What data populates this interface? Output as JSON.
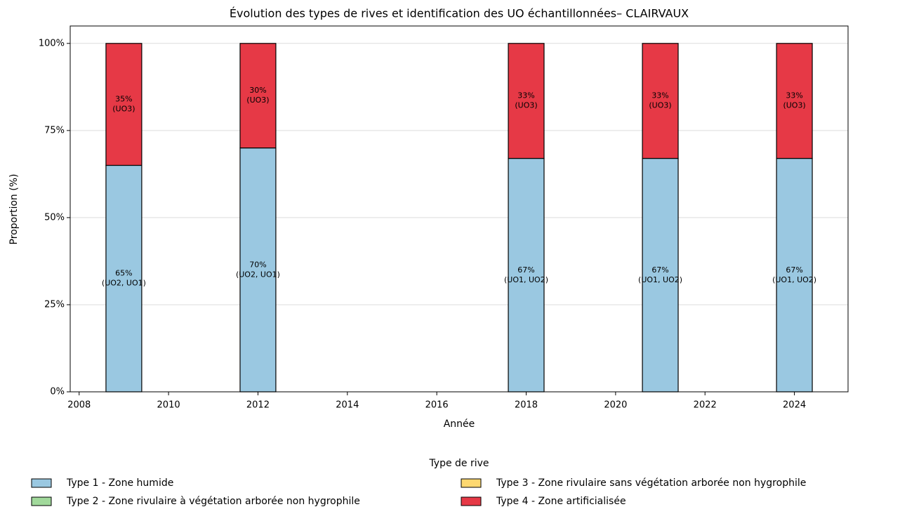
{
  "chart_data": {
    "type": "stacked_bar",
    "title": "Évolution des types de rives et identification des UO échantillonnées– CLAIRVAUX",
    "xlabel": "Année",
    "ylabel": "Proportion (%)",
    "x": [
      2009,
      2012,
      2018,
      2021,
      2024
    ],
    "series": [
      {
        "name": "Type 1 - Zone humide",
        "color": "#9ac8e1",
        "values": [
          65,
          70,
          67,
          67,
          67
        ],
        "value_labels": [
          "65%",
          "70%",
          "67%",
          "67%",
          "67%"
        ],
        "uo_labels": [
          "(UO2, UO1)",
          "(UO2, UO1)",
          "(UO1, UO2)",
          "(UO1, UO2)",
          "(UO1, UO2)"
        ]
      },
      {
        "name": "Type 2 - Zone rivulaire à végétation arborée non hygrophile",
        "color": "#a1d99b",
        "values": [
          0,
          0,
          0,
          0,
          0
        ]
      },
      {
        "name": "Type 3 - Zone rivulaire sans végétation arborée non hygrophile",
        "color": "#fdd870",
        "values": [
          0,
          0,
          0,
          0,
          0
        ]
      },
      {
        "name": "Type 4 - Zone artificialisée",
        "color": "#e63946",
        "values": [
          35,
          30,
          33,
          33,
          33
        ],
        "value_labels": [
          "35%",
          "30%",
          "33%",
          "33%",
          "33%"
        ],
        "uo_labels": [
          "(UO3)",
          "(UO3)",
          "(UO3)",
          "(UO3)",
          "(UO3)"
        ]
      }
    ],
    "xlim": [
      2007.8,
      2025.2
    ],
    "xticks": [
      2008,
      2010,
      2012,
      2014,
      2016,
      2018,
      2020,
      2022,
      2024
    ],
    "ylim": [
      0,
      105
    ],
    "yticks": [
      {
        "value": 0,
        "label": "0%"
      },
      {
        "value": 25,
        "label": "25%"
      },
      {
        "value": 50,
        "label": "50%"
      },
      {
        "value": 75,
        "label": "75%"
      },
      {
        "value": 100,
        "label": "100%"
      }
    ],
    "grid": true,
    "legend_title": "Type de rive",
    "legend": "bottom"
  }
}
